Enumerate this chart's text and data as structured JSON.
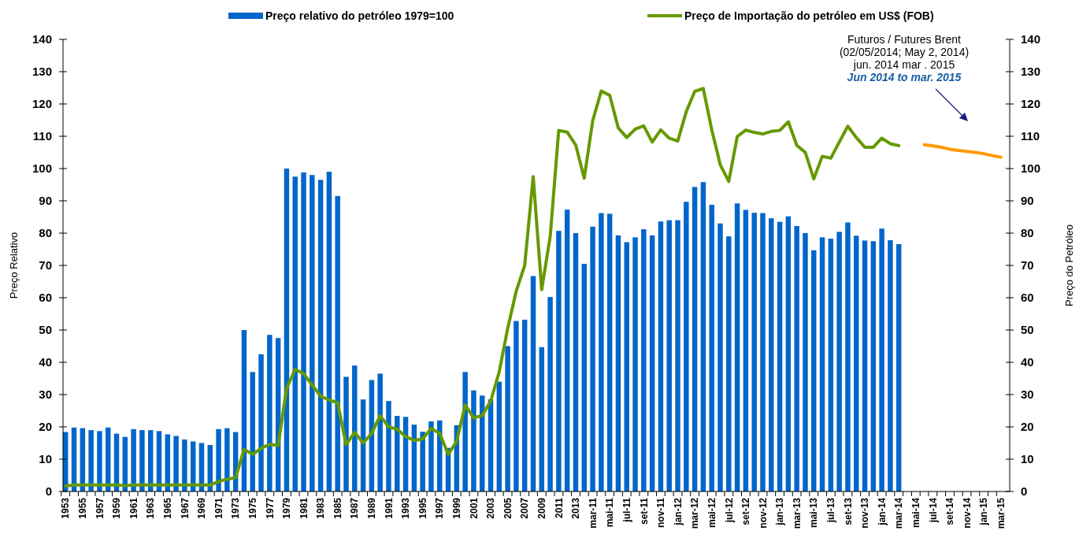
{
  "chart_data": {
    "type": "bar",
    "ylabel": "Preço Relativo",
    "y2label": "Preço do Petróleo",
    "categories": [
      "1953",
      null,
      "1955",
      null,
      "1957",
      null,
      "1959",
      null,
      "1961",
      null,
      "1963",
      null,
      "1965",
      null,
      "1967",
      null,
      "1969",
      null,
      "1971",
      null,
      "1973",
      null,
      "1975",
      null,
      "1977",
      null,
      "1979",
      null,
      "1981",
      null,
      "1983",
      null,
      "1985",
      null,
      "1987",
      null,
      "1989",
      null,
      "1991",
      null,
      "1993",
      null,
      "1995",
      null,
      "1997",
      null,
      "1999",
      null,
      "2001",
      null,
      "2003",
      null,
      "2005",
      null,
      "2007",
      null,
      "2009",
      null,
      "2011",
      null,
      "2013",
      null,
      "mar-11",
      null,
      "mai-11",
      null,
      "jul-11",
      null,
      "set-11",
      null,
      "nov-11",
      null,
      "jan-12",
      null,
      "mar-12",
      null,
      "mai-12",
      null,
      "jul-12",
      null,
      "set-12",
      null,
      "nov-12",
      null,
      "jan-13",
      null,
      "mar-13",
      null,
      "mai-13",
      null,
      "jul-13",
      null,
      "set-13",
      null,
      "nov-13",
      null,
      "jan-14",
      null,
      "mar-14",
      null,
      "mai-14",
      null,
      "jul-14",
      null,
      "set-14",
      null,
      "nov-14",
      null,
      "jan-15",
      null,
      "mar-15"
    ],
    "series": [
      {
        "name": "Preço relativo do petróleo 1979=100",
        "color": "#0066cc",
        "values": [
          18.4,
          19.8,
          19.6,
          19.0,
          18.7,
          19.8,
          17.9,
          16.9,
          19.3,
          19.0,
          19.0,
          18.7,
          17.7,
          17.2,
          16.1,
          15.5,
          15.0,
          14.4,
          19.3,
          19.6,
          18.4,
          50,
          37,
          42.5,
          48.5,
          47.5,
          100,
          97.5,
          98.8,
          98,
          96.5,
          99,
          91.5,
          35.5,
          39,
          28.5,
          34.5,
          36.5,
          28,
          23.4,
          23.1,
          20.7,
          18.5,
          21.7,
          22,
          13.5,
          20.5,
          37,
          31.3,
          29.7,
          28.5,
          34,
          45,
          52.8,
          53.2,
          66.7,
          44.7,
          60.2,
          80.7,
          87.3,
          80,
          70.5,
          82,
          86.2,
          86,
          79.3,
          77.2,
          78.7,
          81.2,
          79.3,
          83.6,
          84,
          84,
          89.7,
          94.3,
          95.8,
          88.8,
          83,
          79,
          89.2,
          87.2,
          86.3,
          86.2,
          84.6,
          83.5,
          85.2,
          82.2,
          80,
          74.7,
          78.7,
          78.3,
          80.4,
          83.3,
          79.2,
          77.7,
          77.5,
          81.4,
          77.8,
          76.6,
          null,
          null,
          null,
          null,
          null,
          null,
          null,
          null,
          null,
          null,
          null,
          null
        ]
      },
      {
        "name": "Preço de Importação do petróleo em US$ (FOB)",
        "color": "#669900",
        "type": "line",
        "values": [
          1.7,
          2,
          2,
          2,
          2,
          2,
          2,
          1.8,
          2,
          2,
          2,
          2,
          2,
          2,
          2,
          2,
          2,
          2,
          3.1,
          3.8,
          4.3,
          13,
          11.5,
          13.4,
          14.6,
          14.2,
          32,
          37.8,
          36.5,
          33,
          29.5,
          28.3,
          27.5,
          14.5,
          18.3,
          15,
          18,
          23.5,
          20,
          19.3,
          17,
          15.8,
          16.3,
          19.5,
          18,
          11.5,
          15.5,
          26.8,
          22.8,
          23.5,
          28,
          37,
          50.5,
          62,
          70,
          97.5,
          62.5,
          79,
          111.8,
          111.3,
          107.3,
          97,
          114.8,
          124,
          122.7,
          112.6,
          109.6,
          112.2,
          113.2,
          108.2,
          112,
          109.4,
          108.5,
          117.6,
          123.9,
          124.8,
          112,
          101.2,
          96,
          109.9,
          111.9,
          111.2,
          110.7,
          111.5,
          111.8,
          114.5,
          107.2,
          105,
          96.8,
          103.8,
          103.2,
          108.2,
          113.1,
          109.6,
          106.6,
          106.6,
          109.4,
          107.7,
          107.1,
          null,
          null,
          null,
          null,
          null,
          null,
          null,
          null,
          null,
          null,
          null,
          null
        ]
      },
      {
        "color": "#ff9900",
        "type": "line",
        "values": [
          null,
          null,
          null,
          null,
          null,
          null,
          null,
          null,
          null,
          null,
          null,
          null,
          null,
          null,
          null,
          null,
          null,
          null,
          null,
          null,
          null,
          null,
          null,
          null,
          null,
          null,
          null,
          null,
          null,
          null,
          null,
          null,
          null,
          null,
          null,
          null,
          null,
          null,
          null,
          null,
          null,
          null,
          null,
          null,
          null,
          null,
          null,
          null,
          null,
          null,
          null,
          null,
          null,
          null,
          null,
          null,
          null,
          null,
          null,
          null,
          null,
          null,
          null,
          null,
          null,
          null,
          null,
          null,
          null,
          null,
          null,
          null,
          null,
          null,
          null,
          null,
          null,
          null,
          null,
          null,
          null,
          null,
          null,
          null,
          null,
          null,
          null,
          null,
          null,
          null,
          null,
          null,
          null,
          null,
          null,
          null,
          null,
          null,
          null,
          null,
          null,
          107.4,
          107,
          106.6,
          106,
          105.6,
          105.3,
          105,
          104.6,
          104,
          103.5
        ]
      }
    ],
    "ylim": [
      0,
      140
    ],
    "yticks": [
      0,
      10,
      20,
      30,
      40,
      50,
      60,
      70,
      80,
      90,
      100,
      110,
      120,
      130,
      140
    ],
    "y2lim": [
      0,
      140
    ],
    "y2ticks": [
      0,
      10,
      20,
      30,
      40,
      50,
      60,
      70,
      80,
      90,
      100,
      110,
      120,
      130,
      140
    ],
    "legend": "top",
    "marker": "none",
    "line_style": "solid",
    "annotations": [
      "Futuros / Futures Brent",
      "(02/05/2014;  May 2, 2014)",
      "jun. 2014 mar . 2015",
      "Jun 2014 to  mar. 2015"
    ]
  }
}
